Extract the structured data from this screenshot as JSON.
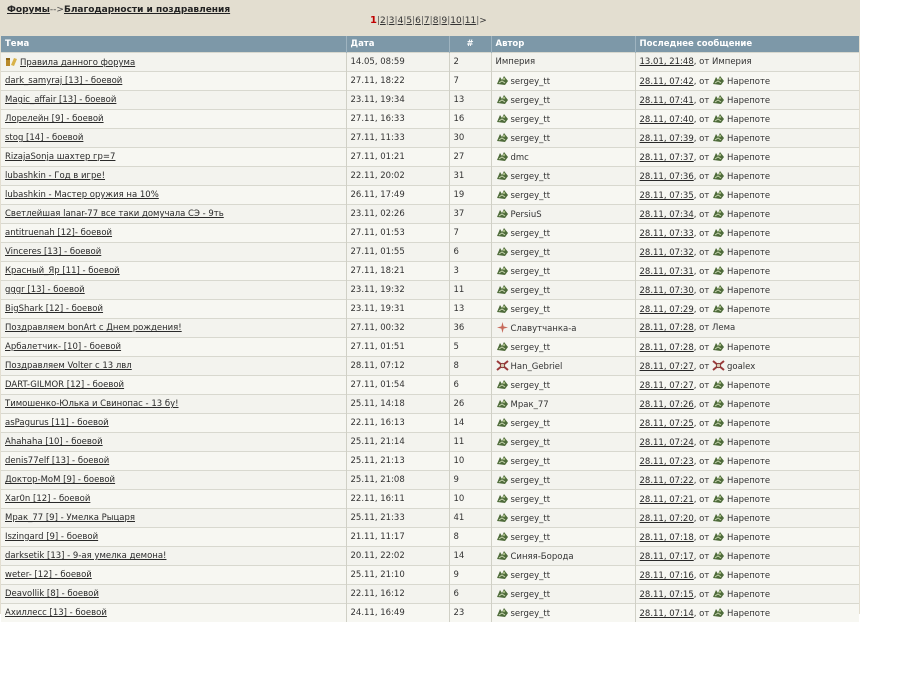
{
  "breadcrumb": {
    "root": "Форумы",
    "sep": "-->",
    "current": "Благодарности и поздравления"
  },
  "pager": {
    "current": "1",
    "pages": [
      "2",
      "3",
      "4",
      "5",
      "6",
      "7",
      "8",
      "9",
      "10",
      "11"
    ],
    "next": ">"
  },
  "columns": [
    "Тема",
    "Дата",
    "#",
    "Автор",
    "Последнее сообщение"
  ],
  "rows": [
    {
      "topic": "Правила данного форума",
      "topic_icon": "rules-icon",
      "date": "14.05, 08:59",
      "count": "2",
      "author": "Империя",
      "author_icon": "",
      "last_date": "13.01, 21:48",
      "last_by": "Империя",
      "last_icon": "",
      "from": ", от"
    },
    {
      "topic": "dark_samyraj [13] - боевой",
      "date": "27.11, 18:22",
      "count": "7",
      "author": "sergey_tt",
      "author_icon": "clan-icon",
      "last_date": "28.11, 07:42",
      "last_by": "Нарепоте",
      "last_icon": "clan-icon",
      "from": ", от"
    },
    {
      "topic": "Magic_affair [13] - боевой",
      "date": "23.11, 19:34",
      "count": "13",
      "author": "sergey_tt",
      "author_icon": "clan-icon",
      "last_date": "28.11, 07:41",
      "last_by": "Нарепоте",
      "last_icon": "clan-icon",
      "from": ", от"
    },
    {
      "topic": "Лорелейн [9] - боевой",
      "date": "27.11, 16:33",
      "count": "16",
      "author": "sergey_tt",
      "author_icon": "clan-icon",
      "last_date": "28.11, 07:40",
      "last_by": "Нарепоте",
      "last_icon": "clan-icon",
      "from": ", от"
    },
    {
      "topic": "stog [14] - боевой",
      "date": "27.11, 11:33",
      "count": "30",
      "author": "sergey_tt",
      "author_icon": "clan-icon",
      "last_date": "28.11, 07:39",
      "last_by": "Нарепоте",
      "last_icon": "clan-icon",
      "from": ", от"
    },
    {
      "topic": "RizajaSonja шахтер гр=7",
      "date": "27.11, 01:21",
      "count": "27",
      "author": "dmc",
      "author_icon": "clan-icon",
      "last_date": "28.11, 07:37",
      "last_by": "Нарепоте",
      "last_icon": "clan-icon",
      "from": ", от"
    },
    {
      "topic": "lubashkin - Год в игре!",
      "date": "22.11, 20:02",
      "count": "31",
      "author": "sergey_tt",
      "author_icon": "clan-icon",
      "last_date": "28.11, 07:36",
      "last_by": "Нарепоте",
      "last_icon": "clan-icon",
      "from": ", от"
    },
    {
      "topic": "lubashkin - Мастер оружия на 10%",
      "date": "26.11, 17:49",
      "count": "19",
      "author": "sergey_tt",
      "author_icon": "clan-icon",
      "last_date": "28.11, 07:35",
      "last_by": "Нарепоте",
      "last_icon": "clan-icon",
      "from": ", от"
    },
    {
      "topic": "Светлейшая lanar-77 все таки домучала СЭ - 9ть",
      "date": "23.11, 02:26",
      "count": "37",
      "author": "PersiuS",
      "author_icon": "clan-icon",
      "last_date": "28.11, 07:34",
      "last_by": "Нарепоте",
      "last_icon": "clan-icon",
      "from": ", от"
    },
    {
      "topic": "antitruenah [12]- боевой",
      "date": "27.11, 01:53",
      "count": "7",
      "author": "sergey_tt",
      "author_icon": "clan-icon",
      "last_date": "28.11, 07:33",
      "last_by": "Нарепоте",
      "last_icon": "clan-icon",
      "from": ", от"
    },
    {
      "topic": "Vinceres [13] - боевой",
      "date": "27.11, 01:55",
      "count": "6",
      "author": "sergey_tt",
      "author_icon": "clan-icon",
      "last_date": "28.11, 07:32",
      "last_by": "Нарепоте",
      "last_icon": "clan-icon",
      "from": ", от"
    },
    {
      "topic": "Красный_Яр [11] - боевой",
      "date": "27.11, 18:21",
      "count": "3",
      "author": "sergey_tt",
      "author_icon": "clan-icon",
      "last_date": "28.11, 07:31",
      "last_by": "Нарепоте",
      "last_icon": "clan-icon",
      "from": ", от"
    },
    {
      "topic": "gggr [13] - боевой",
      "date": "23.11, 19:32",
      "count": "11",
      "author": "sergey_tt",
      "author_icon": "clan-icon",
      "last_date": "28.11, 07:30",
      "last_by": "Нарепоте",
      "last_icon": "clan-icon",
      "from": ", от"
    },
    {
      "topic": "BigShark [12] - боевой",
      "date": "23.11, 19:31",
      "count": "13",
      "author": "sergey_tt",
      "author_icon": "clan-icon",
      "last_date": "28.11, 07:29",
      "last_by": "Нарепоте",
      "last_icon": "clan-icon",
      "from": ", от"
    },
    {
      "topic": "Поздравляем bonArt с Днем рождения!",
      "date": "27.11, 00:32",
      "count": "36",
      "author": "Славутчанка-а",
      "author_icon": "star-clan-icon",
      "last_date": "28.11, 07:28",
      "last_by": "Лема",
      "last_icon": "",
      "from": ", от"
    },
    {
      "topic": "Арбалетчик- [10] - боевой",
      "date": "27.11, 01:51",
      "count": "5",
      "author": "sergey_tt",
      "author_icon": "clan-icon",
      "last_date": "28.11, 07:28",
      "last_by": "Нарепоте",
      "last_icon": "clan-icon",
      "from": ", от"
    },
    {
      "topic": "Поздравляем Volter с 13 лвл",
      "date": "28.11, 07:12",
      "count": "8",
      "author": "Han_Gebriel",
      "author_icon": "red-clan-icon",
      "last_date": "28.11, 07:27",
      "last_by": "goalex",
      "last_icon": "red-clan-icon",
      "from": ", от"
    },
    {
      "topic": "DART-GILMOR [12] - боевой",
      "date": "27.11, 01:54",
      "count": "6",
      "author": "sergey_tt",
      "author_icon": "clan-icon",
      "last_date": "28.11, 07:27",
      "last_by": "Нарепоте",
      "last_icon": "clan-icon",
      "from": ", от"
    },
    {
      "topic": "Тимошенко-Юлька и Свинопас - 13 бу!",
      "date": "25.11, 14:18",
      "count": "26",
      "author": "Мрак_77",
      "author_icon": "clan-icon",
      "last_date": "28.11, 07:26",
      "last_by": "Нарепоте",
      "last_icon": "clan-icon",
      "from": ", от"
    },
    {
      "topic": "asPagurus [11] - боевой",
      "date": "22.11, 16:13",
      "count": "14",
      "author": "sergey_tt",
      "author_icon": "clan-icon",
      "last_date": "28.11, 07:25",
      "last_by": "Нарепоте",
      "last_icon": "clan-icon",
      "from": ", от"
    },
    {
      "topic": "Ahahaha [10] - боевой",
      "date": "25.11, 21:14",
      "count": "11",
      "author": "sergey_tt",
      "author_icon": "clan-icon",
      "last_date": "28.11, 07:24",
      "last_by": "Нарепоте",
      "last_icon": "clan-icon",
      "from": ", от"
    },
    {
      "topic": "denis77elf [13] - боевой",
      "date": "25.11, 21:13",
      "count": "10",
      "author": "sergey_tt",
      "author_icon": "clan-icon",
      "last_date": "28.11, 07:23",
      "last_by": "Нарепоте",
      "last_icon": "clan-icon",
      "from": ", от"
    },
    {
      "topic": "Доктор-МоМ [9] - боевой",
      "date": "25.11, 21:08",
      "count": "9",
      "author": "sergey_tt",
      "author_icon": "clan-icon",
      "last_date": "28.11, 07:22",
      "last_by": "Нарепоте",
      "last_icon": "clan-icon",
      "from": ", от"
    },
    {
      "topic": "Xar0n [12] - боевой",
      "date": "22.11, 16:11",
      "count": "10",
      "author": "sergey_tt",
      "author_icon": "clan-icon",
      "last_date": "28.11, 07:21",
      "last_by": "Нарепоте",
      "last_icon": "clan-icon",
      "from": ", от"
    },
    {
      "topic": "Мрак_77 [9] - Умелка Рыцаря",
      "date": "25.11, 21:33",
      "count": "41",
      "author": "sergey_tt",
      "author_icon": "clan-icon",
      "last_date": "28.11, 07:20",
      "last_by": "Нарепоте",
      "last_icon": "clan-icon",
      "from": ", от"
    },
    {
      "topic": "Iszingard [9] - боевой",
      "date": "21.11, 11:17",
      "count": "8",
      "author": "sergey_tt",
      "author_icon": "clan-icon",
      "last_date": "28.11, 07:18",
      "last_by": "Нарепоте",
      "last_icon": "clan-icon",
      "from": ", от"
    },
    {
      "topic": "darksetik [13] - 9-ая умелка демона!",
      "date": "20.11, 22:02",
      "count": "14",
      "author": "Синяя-Борода",
      "author_icon": "clan-icon",
      "last_date": "28.11, 07:17",
      "last_by": "Нарепоте",
      "last_icon": "clan-icon",
      "from": ", от"
    },
    {
      "topic": "weter- [12] - боевой",
      "date": "25.11, 21:10",
      "count": "9",
      "author": "sergey_tt",
      "author_icon": "clan-icon",
      "last_date": "28.11, 07:16",
      "last_by": "Нарепоте",
      "last_icon": "clan-icon",
      "from": ", от"
    },
    {
      "topic": "Deavollik [8] - боевой",
      "date": "22.11, 16:12",
      "count": "6",
      "author": "sergey_tt",
      "author_icon": "clan-icon",
      "last_date": "28.11, 07:15",
      "last_by": "Нарепоте",
      "last_icon": "clan-icon",
      "from": ", от"
    },
    {
      "topic": "Ахиллесс [13] - боевой",
      "date": "24.11, 16:49",
      "count": "23",
      "author": "sergey_tt",
      "author_icon": "clan-icon",
      "last_date": "28.11, 07:14",
      "last_by": "Нарепоте",
      "last_icon": "clan-icon",
      "from": ", от"
    }
  ]
}
